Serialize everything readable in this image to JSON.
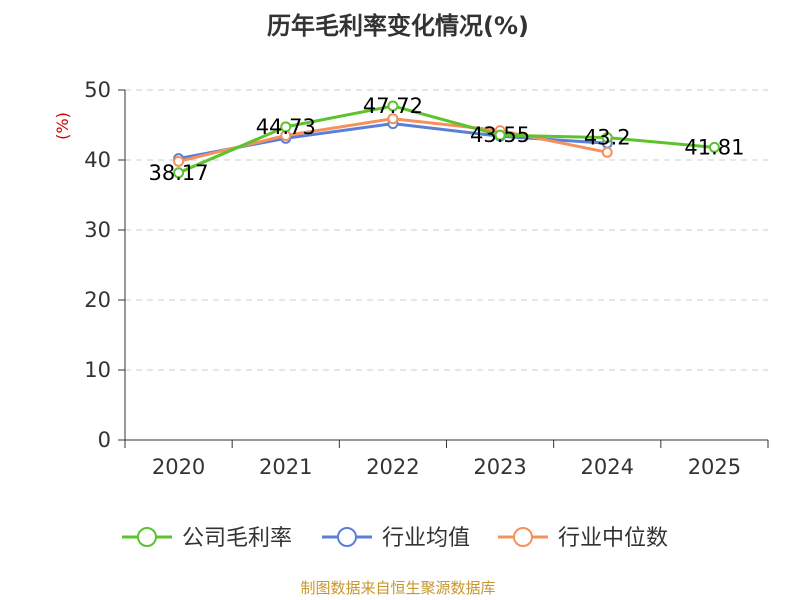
{
  "chart_data": {
    "type": "line",
    "title": "历年毛利率变化情况(%)",
    "ylabel": "(%)",
    "xlabel": "",
    "categories": [
      "2020",
      "2021",
      "2022",
      "2023",
      "2024",
      "2025"
    ],
    "ylim": [
      0,
      50
    ],
    "yticks": [
      0,
      10,
      20,
      30,
      40,
      50
    ],
    "grid": true,
    "legend_position": "bottom",
    "series": [
      {
        "name": "公司毛利率",
        "color": "#5cc22e",
        "values": [
          38.17,
          44.73,
          47.72,
          43.55,
          43.2,
          41.81
        ],
        "labels": [
          "38.17",
          "44.73",
          "47.72",
          "43.55",
          "43.2",
          "41.81"
        ]
      },
      {
        "name": "行业均值",
        "color": "#5b7fd9",
        "values": [
          40.2,
          43.1,
          45.2,
          43.4,
          42.4,
          null
        ]
      },
      {
        "name": "行业中位数",
        "color": "#f5915c",
        "values": [
          39.8,
          43.5,
          45.9,
          44.2,
          41.1,
          null
        ]
      }
    ],
    "ylabel_color": "#cc0000",
    "footer": "制图数据来自恒生聚源数据库",
    "footer_color": "#c8962a"
  }
}
